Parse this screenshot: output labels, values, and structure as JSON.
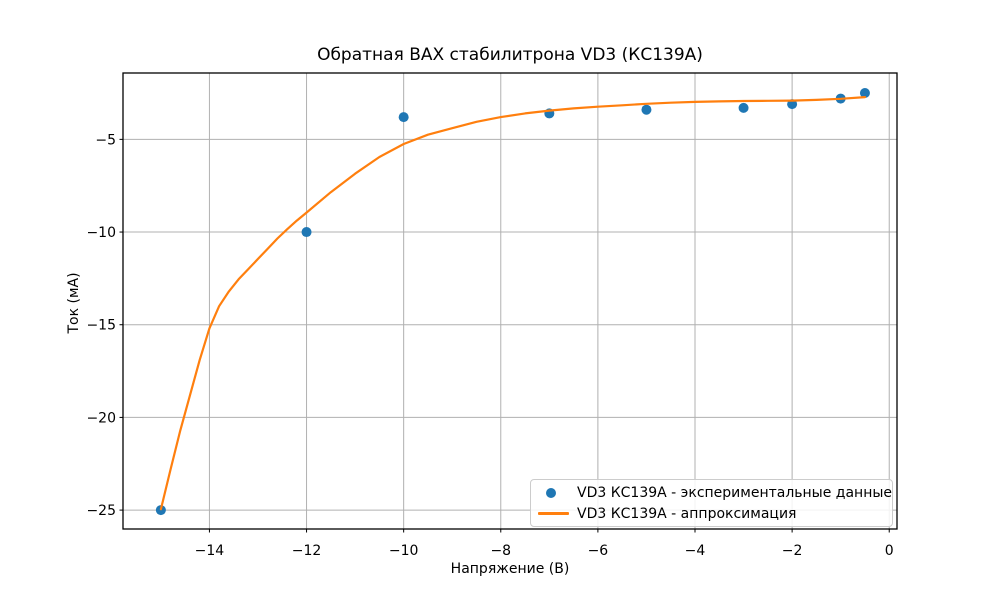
{
  "title": "Обратная ВАХ стабилитрона VD3 (КС139А)",
  "colors": {
    "experimental": "#1f77b4",
    "approximation": "#ff7f0e",
    "grid": "#b0b0b0",
    "spine": "#000000",
    "legend_border": "#cccccc",
    "background": "#ffffff"
  },
  "legend": {
    "position": "lower right",
    "entries": [
      {
        "label": "VD3 КС139А - экспериментальные данные",
        "marker": "dot",
        "color": "#1f77b4"
      },
      {
        "label": "VD3 КС139А - аппроксимация",
        "marker": "line",
        "color": "#ff7f0e"
      }
    ]
  },
  "chart_data": {
    "type": "scatter",
    "title": "Обратная ВАХ стабилитрона VD3 (КС139А)",
    "xlabel": "Напряжение (В)",
    "ylabel": "Ток (мА)",
    "xlim": [
      -15.78,
      0.16
    ],
    "ylim": [
      -26.02,
      -1.42
    ],
    "xticks": [
      -14,
      -12,
      -10,
      -8,
      -6,
      -4,
      -2,
      0
    ],
    "yticks": [
      -25,
      -20,
      -15,
      -10,
      -5
    ],
    "grid": true,
    "legend_position": "lower right",
    "series": [
      {
        "name": "VD3 КС139А - экспериментальные данные",
        "type": "scatter",
        "color": "#1f77b4",
        "x": [
          -15,
          -12,
          -10,
          -7,
          -5,
          -3,
          -2,
          -1,
          -0.5
        ],
        "y": [
          -25,
          -10,
          -3.8,
          -3.6,
          -3.4,
          -3.3,
          -3.1,
          -2.8,
          -2.5
        ]
      },
      {
        "name": "VD3 КС139А - аппроксимация",
        "type": "line",
        "color": "#ff7f0e",
        "x": [
          -15,
          -14.8,
          -14.6,
          -14.4,
          -14.2,
          -14,
          -13.8,
          -13.6,
          -13.4,
          -13.2,
          -13,
          -12.8,
          -12.6,
          -12.4,
          -12.2,
          -12,
          -11.5,
          -11,
          -10.5,
          -10,
          -9.5,
          -9,
          -8.5,
          -8,
          -7.5,
          -7,
          -6.5,
          -6,
          -5.5,
          -5,
          -4.5,
          -4,
          -3.5,
          -3,
          -2.5,
          -2,
          -1.5,
          -1,
          -0.5
        ],
        "y": [
          -24.95,
          -22.8,
          -20.7,
          -18.8,
          -16.9,
          -15.2,
          -14.0,
          -13.2,
          -12.55,
          -12.0,
          -11.45,
          -10.9,
          -10.35,
          -9.85,
          -9.38,
          -8.95,
          -7.85,
          -6.85,
          -5.95,
          -5.25,
          -4.75,
          -4.4,
          -4.05,
          -3.8,
          -3.6,
          -3.45,
          -3.33,
          -3.24,
          -3.16,
          -3.08,
          -3.02,
          -2.98,
          -2.95,
          -2.93,
          -2.92,
          -2.91,
          -2.87,
          -2.81,
          -2.72
        ]
      }
    ]
  }
}
